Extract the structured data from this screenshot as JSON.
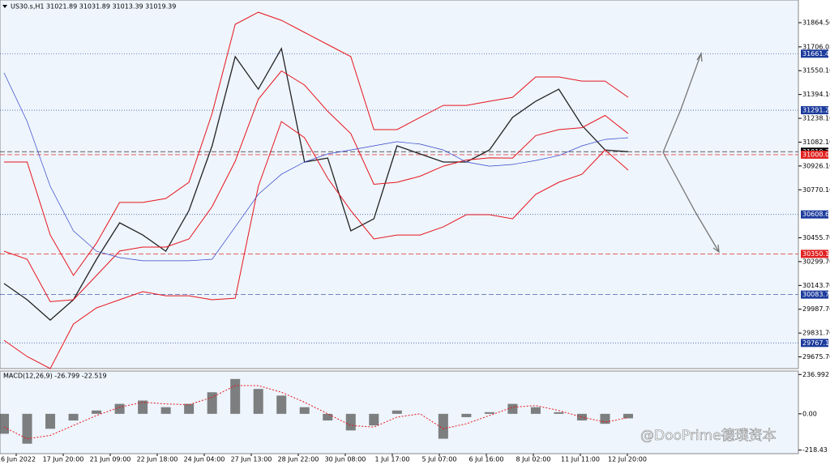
{
  "chart_data": {
    "type": "line",
    "header": "US30.s,H1  31021.89 31031.89 31013.39 31019.39",
    "ylim": [
      29599,
      32013
    ],
    "yticks": [
      {
        "value": 31864.5,
        "label": "31864.50"
      },
      {
        "value": 31706.05,
        "label": "31706.05"
      },
      {
        "value": 31550.1,
        "label": "31550.10"
      },
      {
        "value": 31394.1,
        "label": "31394.10"
      },
      {
        "value": 31238.1,
        "label": "31238.10"
      },
      {
        "value": 31082.1,
        "label": "31082.10"
      },
      {
        "value": 30926.1,
        "label": "30926.10"
      },
      {
        "value": 30770.1,
        "label": "30770.10"
      },
      {
        "value": 30455.7,
        "label": "30455.70"
      },
      {
        "value": 30299.7,
        "label": "30299.70"
      },
      {
        "value": 30143.7,
        "label": "30143.70"
      },
      {
        "value": 29987.7,
        "label": "29987.70"
      },
      {
        "value": 29831.7,
        "label": "29831.70"
      },
      {
        "value": 29675.7,
        "label": "29675.70"
      }
    ],
    "levels": [
      {
        "value": 31661.46,
        "color": "#1c3b9c",
        "style": "dotted"
      },
      {
        "value": 31291.23,
        "color": "#1c3b9c",
        "style": "dotted"
      },
      {
        "value": 31019.39,
        "color": "#000000",
        "style": "dashed"
      },
      {
        "value": 31000,
        "label": "31000.00",
        "color": "#e02020",
        "style": "dashed"
      },
      {
        "value": 30608.62,
        "color": "#1c3b9c",
        "style": "dotted"
      },
      {
        "value": 30350.18,
        "color": "#e02020",
        "style": "dashed"
      },
      {
        "value": 30083.7,
        "label": "30083.70",
        "color": "#1c3b9c",
        "style": "dashed"
      },
      {
        "value": 29767.17,
        "color": "#1c3b9c",
        "style": "dotted"
      }
    ],
    "xlabels": [
      "16 Jun 2022",
      "17 Jun 20:00",
      "21 Jun 09:00",
      "22 Jun 18:00",
      "24 Jun 04:00",
      "27 Jun 13:00",
      "28 Jun 22:00",
      "30 Jun 08:00",
      "1 Jul 17:00",
      "5 Jul 07:00",
      "6 Jul 16:00",
      "8 Jul 02:00",
      "11 Jul 11:00",
      "12 Jul 20:00"
    ],
    "series": [
      {
        "name": "close",
        "color": "#222222",
        "values": [
          30156,
          30050,
          29917,
          30050,
          30315,
          30554,
          30474,
          30368,
          30634,
          31058,
          31642,
          31429,
          31695,
          30952,
          30978,
          30501,
          30580,
          31058,
          31005,
          30952,
          30952,
          31031,
          31244,
          31350,
          31429,
          31191,
          31031,
          31019.39
        ]
      },
      {
        "name": "upper",
        "color": "#e8141c",
        "values": [
          30952,
          30952,
          30474,
          30209,
          30421,
          30687,
          30687,
          30713,
          30819,
          31270,
          31854,
          31933,
          31880,
          31801,
          31721,
          31642,
          31164,
          31164,
          31244,
          31323,
          31323,
          31350,
          31376,
          31509,
          31509,
          31482,
          31482,
          31376
        ]
      },
      {
        "name": "middle",
        "color": "#e8141c",
        "values": [
          30368,
          30315,
          30037,
          30050,
          30209,
          30369,
          30395,
          30395,
          30448,
          30660,
          30957,
          31363,
          31549,
          31456,
          31284,
          31138,
          30806,
          30819,
          30859,
          30925,
          30965,
          30979,
          30978,
          31125,
          31164,
          31177,
          31257,
          31138
        ]
      },
      {
        "name": "lower",
        "color": "#e8141c",
        "values": [
          29784,
          29678,
          29599,
          29891,
          29997,
          30050,
          30103,
          30076,
          30076,
          30050,
          30060,
          30793,
          31217,
          31111,
          30846,
          30634,
          30448,
          30474,
          30474,
          30527,
          30607,
          30607,
          30580,
          30740,
          30819,
          30872,
          31031,
          30899
        ]
      },
      {
        "name": "ma",
        "color": "#3344cc",
        "values": [
          31536,
          31217,
          30793,
          30501,
          30368,
          30326,
          30305,
          30305,
          30305,
          30315,
          30527,
          30740,
          30872,
          30952,
          31005,
          31031,
          31058,
          31085,
          31069,
          31031,
          30952,
          30925,
          30936,
          30962,
          30994,
          31058,
          31100,
          31111
        ]
      }
    ],
    "macd": {
      "title": "MACD(12,26,9) -26.799 -22.519",
      "ylim": [
        -240,
        258
      ],
      "yticks": [
        {
          "value": 236.992,
          "label": "236.992"
        },
        {
          "value": 0,
          "label": "0.00"
        },
        {
          "value": -218.43,
          "label": "-218.43"
        }
      ],
      "histogram": [
        -120,
        -180,
        -90,
        -40,
        20,
        60,
        80,
        40,
        60,
        130,
        210,
        150,
        110,
        40,
        -40,
        -100,
        -70,
        20,
        0,
        -150,
        -20,
        10,
        60,
        40,
        10,
        -40,
        -60,
        -27
      ],
      "signal": [
        -80,
        -150,
        -130,
        -70,
        -10,
        40,
        70,
        60,
        55,
        100,
        170,
        170,
        130,
        70,
        0,
        -70,
        -80,
        -20,
        0,
        -90,
        -60,
        -10,
        40,
        50,
        20,
        -20,
        -50,
        -23
      ],
      "hist_color": "#555555",
      "signal_color": "#e8141c"
    },
    "watermark": "@DooPrime德璞资本"
  }
}
